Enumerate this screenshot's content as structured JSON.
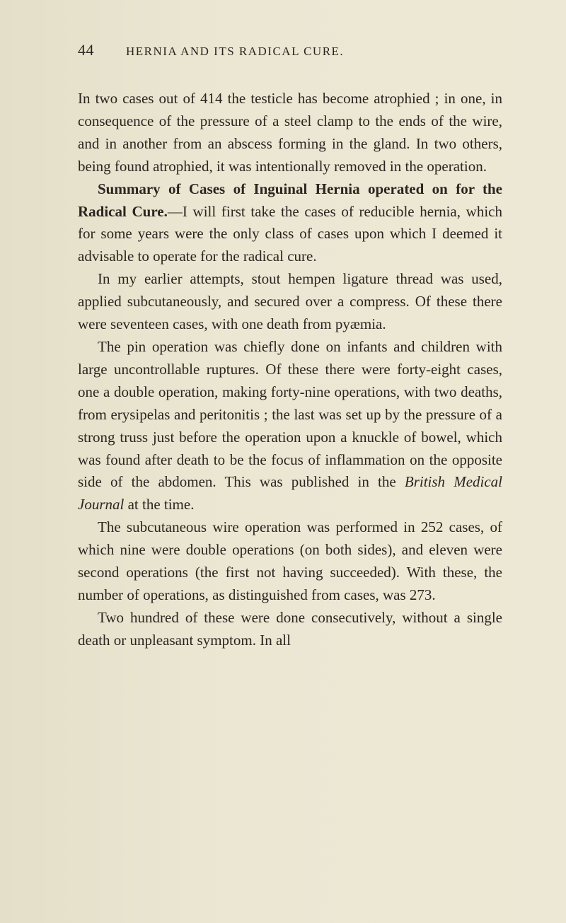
{
  "page": {
    "number": "44",
    "running_title": "HERNIA AND ITS RADICAL CURE.",
    "background_color": "#e8e4d0",
    "text_color": "#2a2520",
    "font_size_body": 21,
    "font_size_header": 17,
    "font_size_pagenum": 22,
    "line_height": 1.52
  },
  "paragraphs": {
    "p1": "In two cases out of 414 the testicle has become atrophied ; in one, in consequence of the pressure of a steel clamp to the ends of the wire, and in another from an abscess forming in the gland. In two others, being found atrophied, it was intentionally removed in the operation.",
    "p2_bold_a": "Summary of Cases of Inguinal Hernia operated on for the Radical Cure.",
    "p2_rest": "—I will first take the cases of reducible hernia, which for some years were the only class of cases upon which I deemed it advisable to operate for the radical cure.",
    "p3": "In my earlier attempts, stout hempen ligature thread was used, applied subcutaneously, and secured over a compress. Of these there were seventeen cases, with one death from pyæmia.",
    "p4": "The pin operation was chiefly done on infants and children with large uncontrollable ruptures. Of these there were forty-eight cases, one a double operation, making forty-nine operations, with two deaths, from erysipelas and peritonitis ; the last was set up by the pressure of a strong truss just before the operation upon a knuckle of bowel, which was found after death to be the focus of inflammation on the opposite side of the abdomen. This was published in the ",
    "p4_italic": "British Medical Journal",
    "p4_end": " at the time.",
    "p5": "The subcutaneous wire operation was performed in 252 cases, of which nine were double operations (on both sides), and eleven were second operations (the first not having succeeded). With these, the number of operations, as distinguished from cases, was 273.",
    "p6": "Two hundred of these were done consecutively, without a single death or unpleasant symptom. In all"
  }
}
